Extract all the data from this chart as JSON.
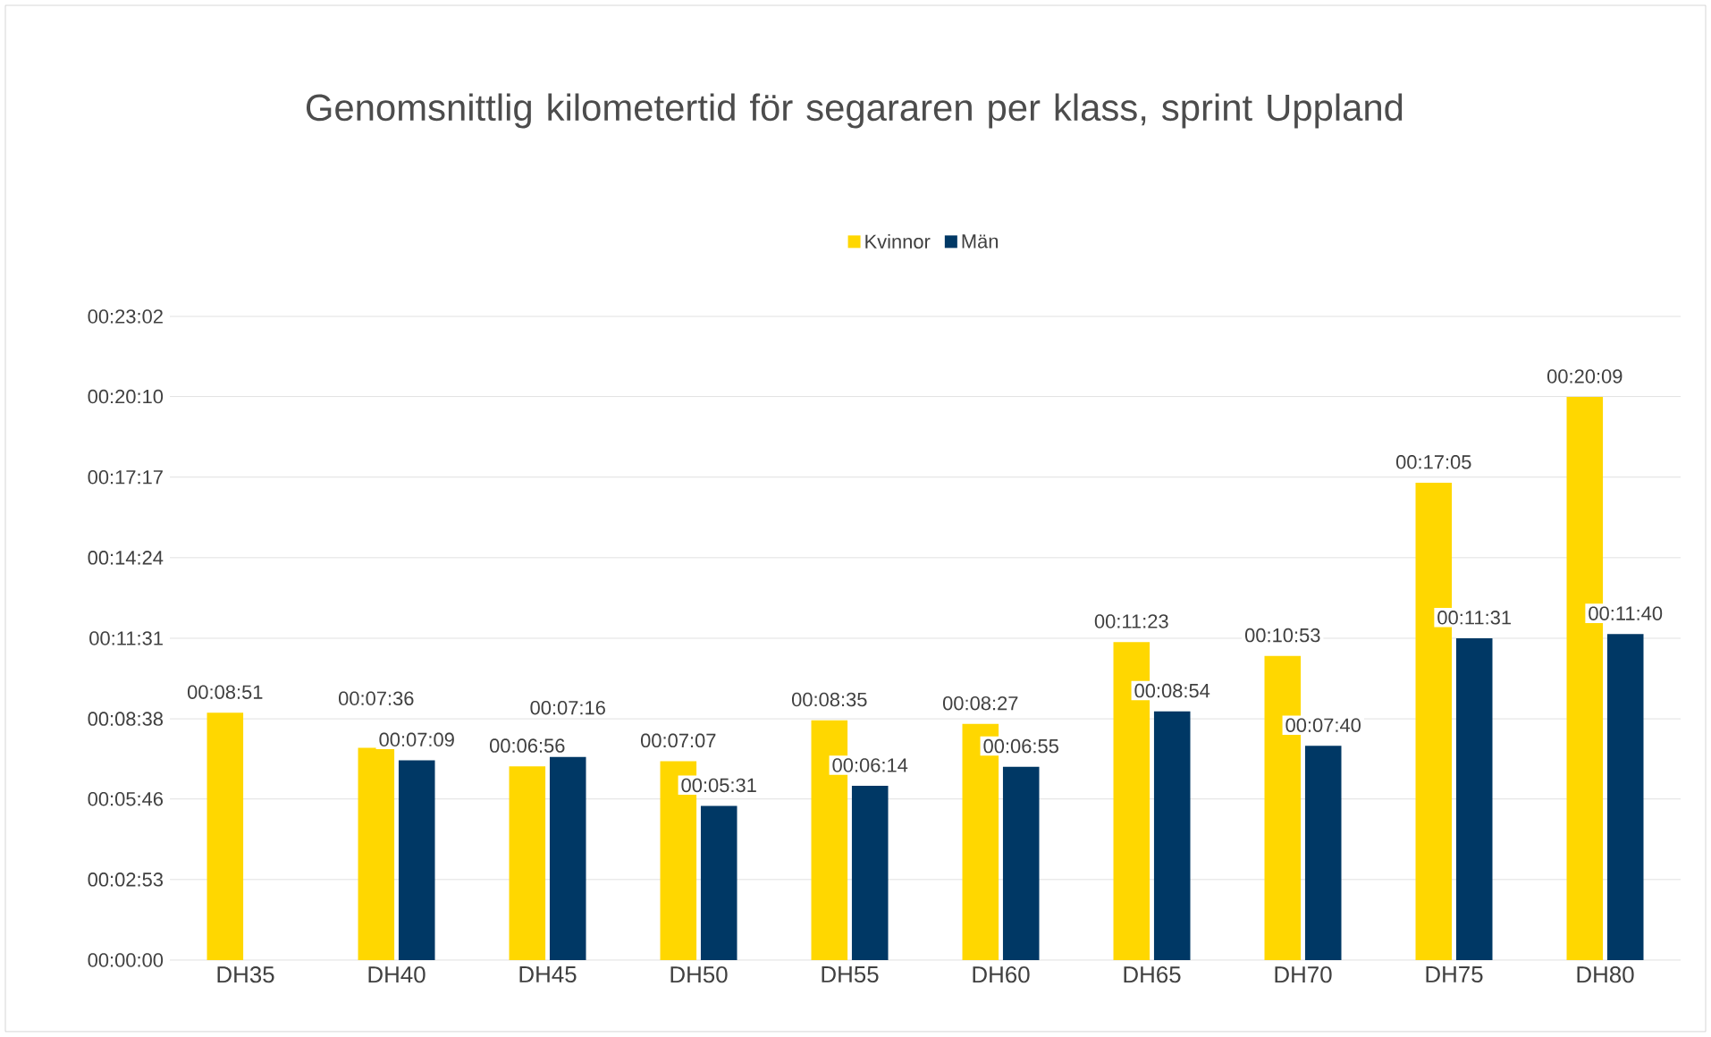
{
  "chart_data": {
    "type": "bar",
    "title": "Genomsnittlig kilometertid för segararen per klass, sprint Uppland",
    "categories": [
      "DH35",
      "DH40",
      "DH45",
      "DH50",
      "DH55",
      "DH60",
      "DH65",
      "DH70",
      "DH75",
      "DH80"
    ],
    "series": [
      {
        "name": "Kvinnor",
        "color": "#ffd700",
        "values": [
          531,
          456,
          416,
          427,
          515,
          507,
          683,
          653,
          1025,
          1209
        ],
        "value_labels": [
          "00:08:51",
          "00:07:36",
          "00:06:56",
          "00:07:07",
          "00:08:35",
          "00:08:27",
          "00:11:23",
          "00:10:53",
          "00:17:05",
          "00:20:09"
        ]
      },
      {
        "name": "Män",
        "color": "#003865",
        "values": [
          null,
          429,
          436,
          331,
          374,
          415,
          534,
          460,
          691,
          700
        ],
        "value_labels": [
          null,
          "00:07:09",
          "00:07:16",
          "00:05:31",
          "00:06:14",
          "00:06:55",
          "00:08:54",
          "00:07:40",
          "00:11:31",
          "00:11:40"
        ]
      }
    ],
    "ylim": [
      0,
      1382
    ],
    "yticks": [
      {
        "value": 0,
        "label": "00:00:00"
      },
      {
        "value": 173,
        "label": "00:02:53"
      },
      {
        "value": 346,
        "label": "00:05:46"
      },
      {
        "value": 518,
        "label": "00:08:38"
      },
      {
        "value": 691,
        "label": "00:11:31"
      },
      {
        "value": 864,
        "label": "00:14:24"
      },
      {
        "value": 1037,
        "label": "00:17:17"
      },
      {
        "value": 1210,
        "label": "00:20:10"
      },
      {
        "value": 1382,
        "label": "00:23:02"
      }
    ],
    "grid": "y",
    "legend": "top"
  }
}
